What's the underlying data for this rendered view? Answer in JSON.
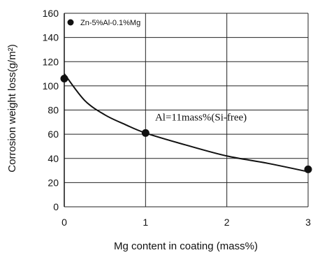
{
  "chart_data": {
    "type": "scatter",
    "xlabel": "Mg content in coating (mass%)",
    "ylabel": "Corrosion weight loss(g/m²)",
    "xlim": [
      0,
      3
    ],
    "ylim": [
      0,
      160
    ],
    "xticks": [
      "0",
      "1",
      "2",
      "3"
    ],
    "yticks": [
      "0",
      "20",
      "40",
      "60",
      "80",
      "100",
      "120",
      "140",
      "160"
    ],
    "grid": true,
    "series": [
      {
        "name": "Zn-5%Al-0.1%Mg",
        "x": [
          0
        ],
        "y": [
          106
        ]
      },
      {
        "name": "",
        "x": [
          1,
          3
        ],
        "y": [
          61,
          31
        ]
      }
    ],
    "fit_curve": {
      "x": [
        0,
        0.25,
        0.5,
        0.75,
        1,
        1.5,
        2,
        2.5,
        3
      ],
      "y": [
        110,
        88,
        76,
        68,
        61,
        51,
        42,
        36,
        29
      ]
    },
    "annotations": [
      {
        "text": "Al=11mass%(Si-free)",
        "x": 1.1,
        "y": 68
      }
    ],
    "legend": {
      "position": "top-left",
      "label": "Zn-5%Al-0.1%Mg"
    }
  }
}
